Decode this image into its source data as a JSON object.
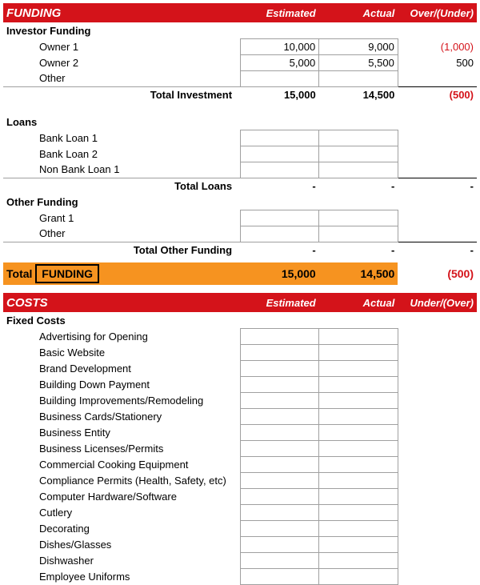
{
  "funding": {
    "header": {
      "title": "FUNDING",
      "c1": "Estimated",
      "c2": "Actual",
      "c3": "Over/(Under)"
    },
    "investor": {
      "label": "Investor Funding",
      "rows": [
        {
          "label": "Owner 1",
          "est": "10,000",
          "act": "9,000",
          "diff": "(1,000)",
          "neg": true
        },
        {
          "label": "Owner 2",
          "est": "5,000",
          "act": "5,500",
          "diff": "500",
          "neg": false
        },
        {
          "label": "Other",
          "est": "",
          "act": "",
          "diff": "",
          "neg": false
        }
      ],
      "total": {
        "label": "Total Investment",
        "est": "15,000",
        "act": "14,500",
        "diff": "(500)",
        "neg": true
      }
    },
    "loans": {
      "label": "Loans",
      "rows": [
        {
          "label": "Bank Loan 1"
        },
        {
          "label": "Bank Loan 2"
        },
        {
          "label": "Non Bank Loan 1"
        }
      ],
      "total": {
        "label": "Total Loans",
        "est": "-",
        "act": "-",
        "diff": "-"
      }
    },
    "other": {
      "label": "Other Funding",
      "rows": [
        {
          "label": "Grant 1"
        },
        {
          "label": "Other"
        }
      ],
      "total": {
        "label": "Total Other Funding",
        "est": "-",
        "act": "-",
        "diff": "-"
      }
    },
    "grand": {
      "pre": "Total",
      "box": "FUNDING",
      "est": "15,000",
      "act": "14,500",
      "diff": "(500)",
      "neg": true
    }
  },
  "costs": {
    "header": {
      "title": "COSTS",
      "c1": "Estimated",
      "c2": "Actual",
      "c3": "Under/(Over)"
    },
    "fixed": {
      "label": "Fixed Costs",
      "rows": [
        {
          "label": "Advertising for Opening"
        },
        {
          "label": "Basic Website"
        },
        {
          "label": "Brand Development"
        },
        {
          "label": "Building Down Payment"
        },
        {
          "label": "Building Improvements/Remodeling"
        },
        {
          "label": "Business Cards/Stationery"
        },
        {
          "label": "Business Entity"
        },
        {
          "label": "Business Licenses/Permits"
        },
        {
          "label": "Commercial Cooking Equipment"
        },
        {
          "label": "Compliance Permits (Health, Safety, etc)"
        },
        {
          "label": "Computer Hardware/Software"
        },
        {
          "label": "Cutlery"
        },
        {
          "label": "Decorating"
        },
        {
          "label": "Dishes/Glasses"
        },
        {
          "label": "Dishwasher"
        },
        {
          "label": "Employee Uniforms"
        }
      ]
    }
  },
  "colors": {
    "header_bg": "#d4131a",
    "header_fg": "#ffffff",
    "total_bg": "#f69320",
    "neg": "#d4131a",
    "border": "#a0a0a0"
  }
}
